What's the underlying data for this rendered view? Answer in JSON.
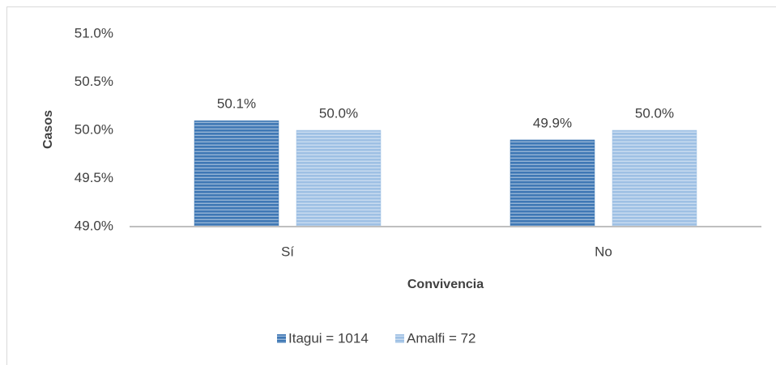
{
  "chart_data": {
    "type": "bar",
    "y_label": "Casos",
    "x_label": "Convivencia",
    "categories": [
      "Sí",
      "No"
    ],
    "series": [
      {
        "name": "Itagui = 1014",
        "color": "#3f78b5",
        "values": [
          50.1,
          49.9
        ],
        "value_labels": [
          "50.1%",
          "49.9%"
        ]
      },
      {
        "name": "Amalfi = 72",
        "color": "#9ec0e4",
        "values": [
          50.0,
          50.0
        ],
        "value_labels": [
          "50.0%",
          "50.0%"
        ]
      }
    ],
    "ylim": [
      49,
      51
    ],
    "yticks": [
      {
        "value": 49,
        "label": "49.0%"
      },
      {
        "value": 49.5,
        "label": "49.5%"
      },
      {
        "value": 50,
        "label": "50.0%"
      },
      {
        "value": 50.5,
        "label": "50.5%"
      },
      {
        "value": 51,
        "label": "51.0%"
      }
    ],
    "grid": false,
    "legend": "bottom"
  }
}
